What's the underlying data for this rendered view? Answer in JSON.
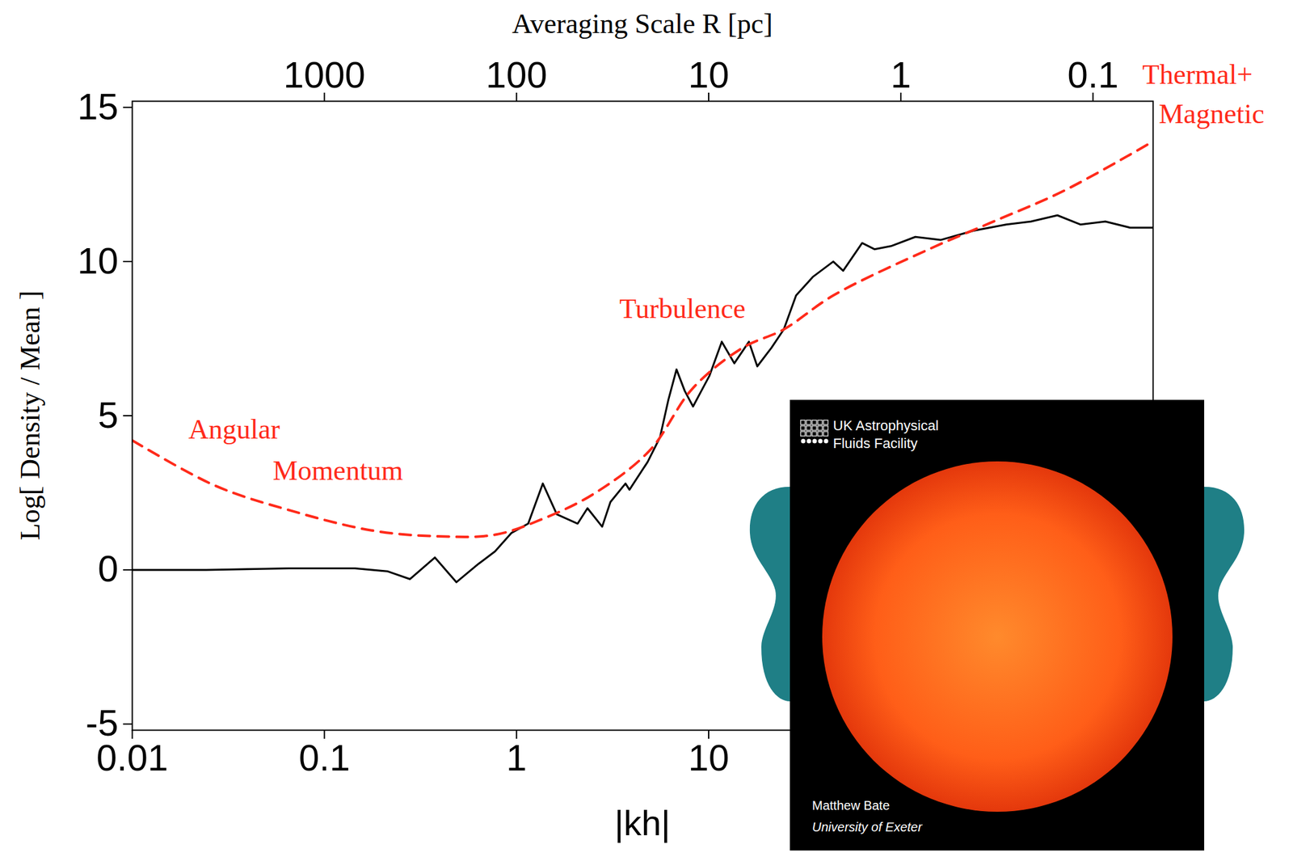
{
  "chart_data": {
    "type": "line",
    "x_label": "|kh|",
    "y_label": "Log[ Density / Mean ]",
    "x2_label": "Averaging Scale R [pc]",
    "log": "x",
    "xlim": [
      0.01,
      2056
    ],
    "ylim": [
      -5.2,
      15.2
    ],
    "xticks": [
      0.01,
      0.1,
      1,
      10
    ],
    "x2ticks": [
      {
        "value": 0.1,
        "label": "1000"
      },
      {
        "value": 1,
        "label": "100"
      },
      {
        "value": 10,
        "label": "10"
      },
      {
        "value": 100,
        "label": "1"
      },
      {
        "value": 1000,
        "label": "0.1"
      }
    ],
    "yticks": [
      -5,
      0,
      5,
      10,
      15
    ],
    "series": [
      {
        "color": "#000000",
        "line_style": "solid",
        "x": [
          0.01,
          0.0243,
          0.0653,
          0.144,
          0.214,
          0.279,
          0.376,
          0.486,
          0.635,
          0.773,
          0.942,
          1.15,
          1.37,
          1.62,
          2.08,
          2.34,
          2.79,
          3.08,
          3.69,
          3.87,
          4.81,
          5.58,
          6.16,
          6.8,
          7.51,
          8.29,
          9.15,
          10.1,
          11.7,
          13.6,
          16.2,
          17.9,
          21.2,
          24.6,
          28.5,
          34.8,
          44.5,
          50.1,
          62.9,
          72.9,
          88.8,
          119,
          161,
          239,
          354,
          476,
          653,
          863,
          1160,
          1560,
          2056
        ],
        "values": [
          0,
          0,
          0.05,
          0.05,
          -0.05,
          -0.3,
          0.4,
          -0.4,
          0.2,
          0.6,
          1.2,
          1.5,
          2.8,
          1.8,
          1.5,
          2.0,
          1.4,
          2.2,
          2.8,
          2.6,
          3.5,
          4.3,
          5.5,
          6.5,
          5.8,
          5.3,
          5.8,
          6.3,
          7.4,
          6.7,
          7.4,
          6.6,
          7.2,
          7.8,
          8.9,
          9.5,
          10.0,
          9.7,
          10.6,
          10.4,
          10.5,
          10.8,
          10.7,
          11.0,
          11.2,
          11.3,
          11.5,
          11.2,
          11.3,
          11.1,
          11.1
        ]
      },
      {
        "color": "#ff2a1a",
        "line_style": "dashed",
        "x": [
          0.01,
          0.0268,
          0.0653,
          0.176,
          0.387,
          0.773,
          1.4,
          2.53,
          4.91,
          8.29,
          15.0,
          24.6,
          44.5,
          146,
          291,
          708,
          2056
        ],
        "values": [
          4.2,
          2.74,
          1.94,
          1.28,
          1.09,
          1.14,
          1.68,
          2.47,
          3.86,
          5.9,
          7.2,
          7.8,
          8.9,
          10.45,
          11.25,
          12.3,
          13.9
        ]
      }
    ],
    "annotations": [
      {
        "text": "Angular Momentum",
        "x": 0.0196,
        "y": 4.55,
        "color": "#ff2a1a"
      },
      {
        "text": "Turbulence",
        "x": 7.3,
        "y": 8.45,
        "color": "#ff2a1a"
      },
      {
        "text": "Thermal+ Magnetic",
        "color": "#ff2a1a"
      }
    ],
    "inset": {
      "logo": [
        "UK Astrophysical",
        "Fluids Facility"
      ],
      "credit": [
        "Matthew Bate",
        "University of Exeter"
      ]
    }
  }
}
